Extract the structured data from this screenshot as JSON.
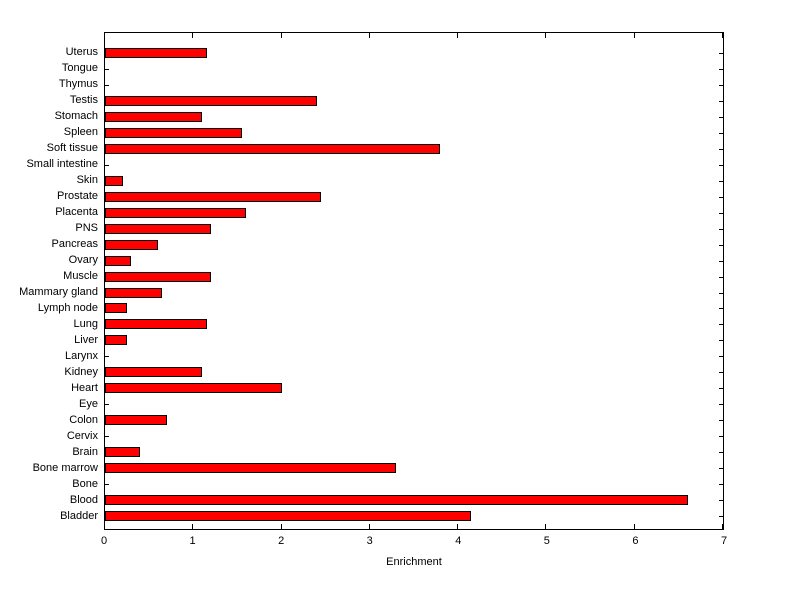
{
  "figure": {
    "background": "#ffffff"
  },
  "chart_data": {
    "type": "bar",
    "orientation": "horizontal",
    "title": "",
    "xlabel": "Enrichment",
    "ylabel": "",
    "xlim": [
      0,
      7
    ],
    "xticks": [
      0,
      1,
      2,
      3,
      4,
      5,
      6,
      7
    ],
    "grid": false,
    "legend": "none",
    "bar_color": "#ff0000",
    "bar_edge_color": "#000000",
    "categories": [
      "Uterus",
      "Tongue",
      "Thymus",
      "Testis",
      "Stomach",
      "Spleen",
      "Soft tissue",
      "Small intestine",
      "Skin",
      "Prostate",
      "Placenta",
      "PNS",
      "Pancreas",
      "Ovary",
      "Muscle",
      "Mammary gland",
      "Lymph node",
      "Lung",
      "Liver",
      "Larynx",
      "Kidney",
      "Heart",
      "Eye",
      "Colon",
      "Cervix",
      "Brain",
      "Bone marrow",
      "Bone",
      "Blood",
      "Bladder"
    ],
    "values": [
      1.15,
      0,
      0,
      2.4,
      1.1,
      1.55,
      3.8,
      0,
      0.2,
      2.45,
      1.6,
      1.2,
      0.6,
      0.3,
      1.2,
      0.65,
      0.25,
      1.15,
      0.25,
      0,
      1.1,
      2.0,
      0,
      0.7,
      0,
      0.4,
      3.3,
      0,
      6.6,
      4.15
    ]
  }
}
